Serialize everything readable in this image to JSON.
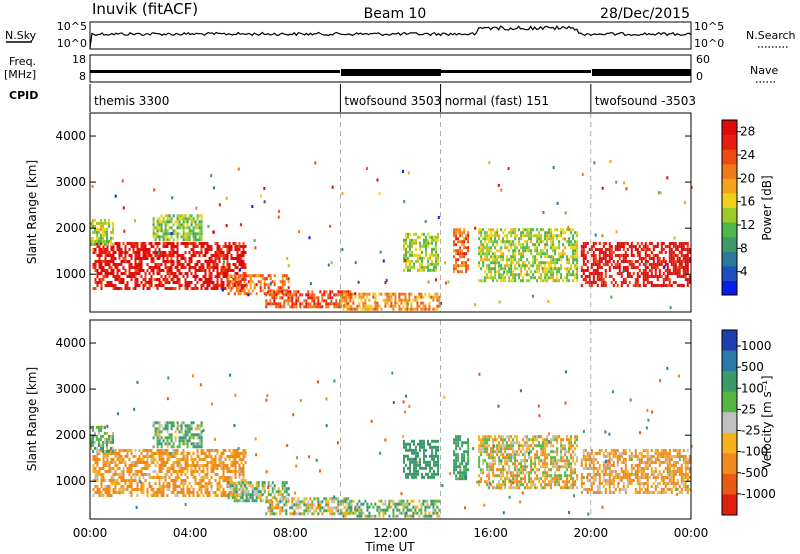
{
  "header": {
    "station": "Inuvik (fitACF)",
    "beam": "Beam 10",
    "date": "28/Dec/2015"
  },
  "summary_panels": {
    "nsky_label": "N.Sky",
    "nsky_ticks": [
      "10^5",
      "10^0"
    ],
    "nsearch_label": "N.Search",
    "nsearch_ticks": [
      "10^5",
      "10^0"
    ],
    "freq_label": "Freq.",
    "freq_unit": "[MHz]",
    "freq_ticks": [
      "18",
      "8"
    ],
    "nave_label": "Nave",
    "nave_ticks": [
      "60",
      "0"
    ],
    "cpid_label": "CPID"
  },
  "cpid_segments": [
    {
      "label": "themis 3300",
      "start_h": 0.0,
      "end_h": 10.0
    },
    {
      "label": "twofsound 3503",
      "start_h": 10.0,
      "end_h": 14.0
    },
    {
      "label": "normal (fast) 151",
      "start_h": 14.0,
      "end_h": 20.0
    },
    {
      "label": "twofsound -3503",
      "start_h": 20.0,
      "end_h": 24.0
    }
  ],
  "x_axis": {
    "label": "Time UT",
    "ticks": [
      "00:00",
      "04:00",
      "08:00",
      "12:00",
      "16:00",
      "20:00",
      "00:00"
    ],
    "range_h": [
      0,
      24
    ]
  },
  "y_axis": {
    "label": "Slant Range [km]",
    "ticks": [
      "4000",
      "3000",
      "2000",
      "1000"
    ],
    "tick_values": [
      4000,
      3000,
      2000,
      1000
    ],
    "range_km": [
      180,
      4500
    ]
  },
  "power_colorbar": {
    "label": "Power [dB]",
    "ticks": [
      "28",
      "24",
      "20",
      "16",
      "12",
      "8",
      "4"
    ],
    "colors": [
      "#0a1de8",
      "#1f4fbf",
      "#2b7a9a",
      "#3f9a6a",
      "#4cb84a",
      "#9ccc2a",
      "#f0d21a",
      "#f6a21a",
      "#f07a1a",
      "#ee4a14",
      "#e61e10",
      "#dc0a0a"
    ]
  },
  "velocity_colorbar": {
    "label": "Velocity [m s⁻¹]",
    "ticks": [
      "1000",
      "500",
      "100",
      "25",
      "-25",
      "-100",
      "-500",
      "-1000"
    ],
    "colors": [
      "#1f3fb0",
      "#2a7aa8",
      "#3a9a6a",
      "#55b844",
      "#c0c0c0",
      "#f5b21c",
      "#f08a1c",
      "#ea5a16",
      "#e0200c"
    ]
  },
  "chart_data": [
    {
      "type": "heatmap",
      "title": "",
      "xlabel": "Time UT",
      "ylabel": "Slant Range [km]",
      "colorbar_label": "Power [dB]",
      "xlim": [
        0,
        24
      ],
      "ylim": [
        180,
        4500
      ],
      "color_range": [
        0,
        30
      ],
      "regions": [
        {
          "t0": 0.1,
          "t1": 6.3,
          "r0": 600,
          "r1": 1700,
          "value": 28
        },
        {
          "t0": 0.0,
          "t1": 1.0,
          "r0": 1600,
          "r1": 2200,
          "value": 14
        },
        {
          "t0": 2.5,
          "t1": 4.5,
          "r0": 1700,
          "r1": 2300,
          "value": 13
        },
        {
          "t0": 5.5,
          "t1": 8.0,
          "r0": 500,
          "r1": 1000,
          "value": 22
        },
        {
          "t0": 7.0,
          "t1": 10.5,
          "r0": 200,
          "r1": 650,
          "value": 24
        },
        {
          "t0": 10.0,
          "t1": 14.0,
          "r0": 200,
          "r1": 600,
          "value": 20
        },
        {
          "t0": 12.5,
          "t1": 14.0,
          "r0": 1000,
          "r1": 1900,
          "value": 14
        },
        {
          "t0": 14.5,
          "t1": 15.2,
          "r0": 1000,
          "r1": 2000,
          "value": 22
        },
        {
          "t0": 15.5,
          "t1": 19.5,
          "r0": 800,
          "r1": 2000,
          "value": 14
        },
        {
          "t0": 19.6,
          "t1": 24.0,
          "r0": 700,
          "r1": 1700,
          "value": 28
        }
      ]
    },
    {
      "type": "heatmap",
      "title": "",
      "xlabel": "Time UT",
      "ylabel": "Slant Range [km]",
      "colorbar_label": "Velocity [m s⁻¹]",
      "xlim": [
        0,
        24
      ],
      "ylim": [
        180,
        4500
      ],
      "color_range": [
        -1000,
        1000
      ],
      "regions": [
        {
          "t0": 0.1,
          "t1": 6.3,
          "r0": 600,
          "r1": 1700,
          "value": -150
        },
        {
          "t0": 0.0,
          "t1": 1.0,
          "r0": 1600,
          "r1": 2200,
          "value": 100
        },
        {
          "t0": 2.5,
          "t1": 4.5,
          "r0": 1700,
          "r1": 2300,
          "value": 100
        },
        {
          "t0": 5.5,
          "t1": 8.0,
          "r0": 500,
          "r1": 1000,
          "value": 80
        },
        {
          "t0": 7.0,
          "t1": 10.5,
          "r0": 200,
          "r1": 650,
          "value": 0
        },
        {
          "t0": 10.0,
          "t1": 14.0,
          "r0": 200,
          "r1": 600,
          "value": 60
        },
        {
          "t0": 12.5,
          "t1": 14.0,
          "r0": 1000,
          "r1": 1900,
          "value": 300
        },
        {
          "t0": 14.5,
          "t1": 15.2,
          "r0": 1000,
          "r1": 2000,
          "value": 200
        },
        {
          "t0": 15.5,
          "t1": 19.5,
          "r0": 800,
          "r1": 2000,
          "value": -50
        },
        {
          "t0": 19.6,
          "t1": 24.0,
          "r0": 700,
          "r1": 1700,
          "value": -120
        }
      ]
    }
  ]
}
